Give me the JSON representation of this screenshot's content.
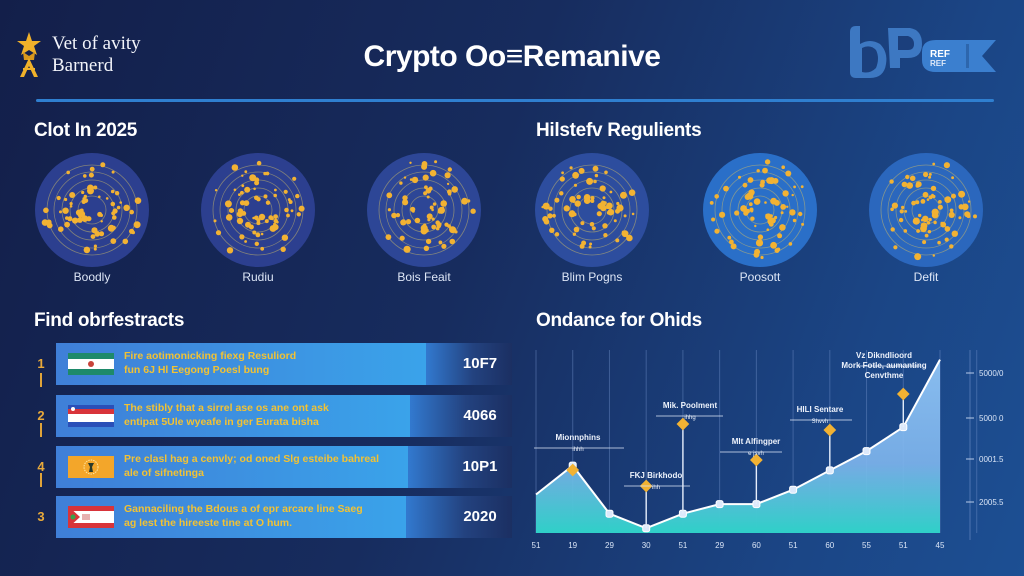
{
  "header": {
    "logo": {
      "line1": "Vet of avity",
      "line2": "Barnerd",
      "icon": "trophy-star-icon"
    },
    "title": "Crypto Oo≡Remanive",
    "badge": {
      "letters": "bP",
      "tag": "REF",
      "icon": "ribbon-badge-icon"
    }
  },
  "colors": {
    "accent_blue": "#2f7fd0",
    "gold": "#f2b233",
    "circle_left": "#2c3f8f",
    "circle_right": "#2a6fc8",
    "area_top": "#8fc3f4",
    "area_bottom": "#2fd0c8"
  },
  "sections": {
    "clot": {
      "title": "Clot In 2025",
      "items": [
        {
          "label": "Boodly"
        },
        {
          "label": "Rudiu"
        },
        {
          "label": "Bois Feait"
        }
      ]
    },
    "history": {
      "title": "Hilstefv Regulients",
      "items": [
        {
          "label": "Blim Pogns"
        },
        {
          "label": "Poosott"
        },
        {
          "label": "Defit"
        }
      ]
    },
    "findings": {
      "title": "Find obrfestracts",
      "rows": [
        {
          "rank": "1",
          "flag": "green-white-flag",
          "line1": "Fire aotimonicking fiexg Resuliord",
          "line2": "fun 6J Hl Eegong Poesl bung",
          "value": "10F7"
        },
        {
          "rank": "2",
          "flag": "red-white-blue-flag",
          "line1": "The stibly that a sirrel ase os ane ont ask",
          "line2": "entipat 5Ule wyeafe in ger Eurata bisha",
          "value": "4066"
        },
        {
          "rank": "4",
          "flag": "orange-emblem-flag",
          "line1": "Pre clasl hag a cenvly; od oned Slg esteibe bahreal",
          "line2": "ale of sifnetinga",
          "value": "10P1"
        },
        {
          "rank": "3",
          "flag": "red-white-crest-flag",
          "line1": "Gannaciling the Bdous a of epr arcare line Saeg",
          "line2": "ag lest the hireeste tine at O hum.",
          "value": "2020"
        }
      ]
    },
    "guidance": {
      "title": "Ondance for Ohids"
    }
  },
  "chart_data": {
    "type": "area",
    "title": "Ondance for Ohids",
    "x": [
      "51",
      "19",
      "29",
      "30",
      "51",
      "29",
      "60",
      "51",
      "60",
      "55",
      "51",
      "45"
    ],
    "series": [
      {
        "name": "trend",
        "values": [
          8,
          14,
          4,
          1,
          4,
          6,
          6,
          9,
          13,
          17,
          22,
          36
        ]
      }
    ],
    "y_tick_labels": [
      "2005.5",
      "0001.5",
      "5000.0",
      "5000.0"
    ],
    "y_ticks_raw": [
      "2005.5",
      "0001.5",
      "5000 0",
      "5000/0"
    ],
    "annotations": [
      {
        "label": "Mionnphins",
        "sub": "ihhh",
        "x_index": 1
      },
      {
        "label": "Mik. Poolment",
        "sub": "ihhg",
        "x_index": 4
      },
      {
        "label": "FKJ Birkhodo",
        "sub": "ihh",
        "x_index": 3
      },
      {
        "label": "Mlt Alfingper",
        "sub": "e jsvh",
        "x_index": 6
      },
      {
        "label": "HILI Sentare",
        "sub": "Shvvh",
        "x_index": 8
      },
      {
        "label": "Vz Dikndlioord Mork Fotle, aumanting Cenvthme",
        "sub": "",
        "x_index": 10
      }
    ],
    "grid": "vertical",
    "legend": "none"
  }
}
